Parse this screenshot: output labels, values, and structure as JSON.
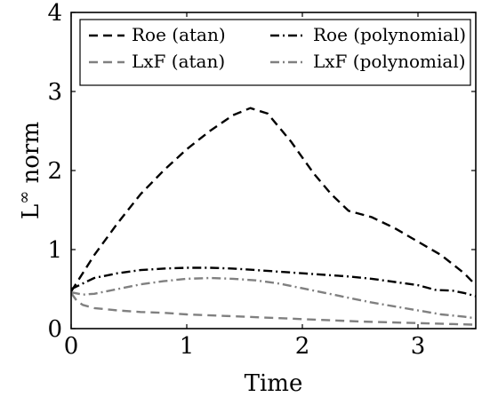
{
  "chart_data": {
    "type": "line",
    "xlabel": "Time",
    "ylabel": "L",
    "ylabel_superscript": "∞",
    "ylabel_suffix": " norm",
    "xlim": [
      0,
      3.5
    ],
    "ylim": [
      0,
      4
    ],
    "xticks": [
      "0",
      "1",
      "2",
      "3"
    ],
    "yticks": [
      "0",
      "1",
      "2",
      "3",
      "4"
    ],
    "grid": false,
    "legend_position": "top",
    "series": [
      {
        "name": "Roe (atan)",
        "color": "#000000",
        "dash": "dashed",
        "x": [
          0,
          0.2,
          0.4,
          0.6,
          0.8,
          1.0,
          1.2,
          1.4,
          1.55,
          1.7,
          1.9,
          2.1,
          2.25,
          2.4,
          2.6,
          2.8,
          3.0,
          3.2,
          3.4,
          3.5
        ],
        "y": [
          0.47,
          0.93,
          1.33,
          1.7,
          2.0,
          2.27,
          2.5,
          2.7,
          2.79,
          2.72,
          2.37,
          1.96,
          1.7,
          1.49,
          1.41,
          1.27,
          1.1,
          0.93,
          0.7,
          0.55
        ]
      },
      {
        "name": "Roe (polynomial)",
        "color": "#000000",
        "dash": "dashdot",
        "x": [
          0,
          0.2,
          0.4,
          0.6,
          0.8,
          1.0,
          1.2,
          1.4,
          1.6,
          1.8,
          2.0,
          2.2,
          2.4,
          2.6,
          2.8,
          3.0,
          3.15,
          3.3,
          3.4,
          3.5
        ],
        "y": [
          0.5,
          0.64,
          0.7,
          0.74,
          0.76,
          0.77,
          0.77,
          0.76,
          0.74,
          0.72,
          0.7,
          0.68,
          0.66,
          0.63,
          0.59,
          0.55,
          0.49,
          0.48,
          0.45,
          0.41
        ]
      },
      {
        "name": "LxF (atan)",
        "color": "#808080",
        "dash": "dashed",
        "x": [
          0,
          0.05,
          0.1,
          0.2,
          0.4,
          0.6,
          0.8,
          1.0,
          1.5,
          2.0,
          2.5,
          3.0,
          3.5
        ],
        "y": [
          0.45,
          0.35,
          0.3,
          0.26,
          0.23,
          0.21,
          0.2,
          0.18,
          0.15,
          0.12,
          0.09,
          0.07,
          0.05
        ]
      },
      {
        "name": "LxF (polynomial)",
        "color": "#808080",
        "dash": "dashdot",
        "x": [
          0,
          0.1,
          0.2,
          0.4,
          0.6,
          0.8,
          1.0,
          1.2,
          1.4,
          1.6,
          1.8,
          2.0,
          2.2,
          2.4,
          2.6,
          2.8,
          3.0,
          3.2,
          3.4,
          3.5
        ],
        "y": [
          0.46,
          0.43,
          0.44,
          0.5,
          0.56,
          0.6,
          0.63,
          0.64,
          0.63,
          0.61,
          0.57,
          0.51,
          0.45,
          0.39,
          0.33,
          0.28,
          0.23,
          0.18,
          0.15,
          0.13
        ]
      }
    ]
  }
}
